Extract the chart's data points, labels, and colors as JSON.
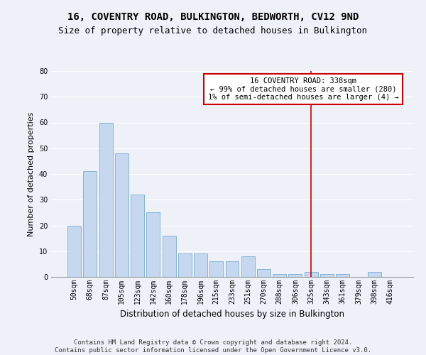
{
  "title": "16, COVENTRY ROAD, BULKINGTON, BEDWORTH, CV12 9ND",
  "subtitle": "Size of property relative to detached houses in Bulkington",
  "xlabel": "Distribution of detached houses by size in Bulkington",
  "ylabel": "Number of detached properties",
  "bar_labels": [
    "50sqm",
    "68sqm",
    "87sqm",
    "105sqm",
    "123sqm",
    "142sqm",
    "160sqm",
    "178sqm",
    "196sqm",
    "215sqm",
    "233sqm",
    "251sqm",
    "270sqm",
    "288sqm",
    "306sqm",
    "325sqm",
    "343sqm",
    "361sqm",
    "379sqm",
    "398sqm",
    "416sqm"
  ],
  "bar_values": [
    20,
    41,
    60,
    48,
    32,
    25,
    16,
    9,
    9,
    6,
    6,
    8,
    3,
    1,
    1,
    2,
    1,
    1,
    0,
    2,
    0
  ],
  "bar_color": "#c5d8f0",
  "bar_edge_color": "#7aadd4",
  "annotation_text": "16 COVENTRY ROAD: 338sqm\n← 99% of detached houses are smaller (280)\n1% of semi-detached houses are larger (4) →",
  "annotation_box_color": "#ffffff",
  "annotation_box_edge_color": "#cc0000",
  "vline_color": "#cc0000",
  "vline_x_index": 15,
  "ylim": [
    0,
    80
  ],
  "yticks": [
    0,
    10,
    20,
    30,
    40,
    50,
    60,
    70,
    80
  ],
  "background_color": "#eef2f8",
  "plot_background_color": "#eef2f8",
  "grid_color": "#ffffff",
  "footer_line1": "Contains HM Land Registry data © Crown copyright and database right 2024.",
  "footer_line2": "Contains public sector information licensed under the Open Government Licence v3.0.",
  "title_fontsize": 10,
  "subtitle_fontsize": 9,
  "xlabel_fontsize": 8.5,
  "ylabel_fontsize": 8,
  "tick_fontsize": 7,
  "footer_fontsize": 6.5,
  "annotation_fontsize": 7.5
}
